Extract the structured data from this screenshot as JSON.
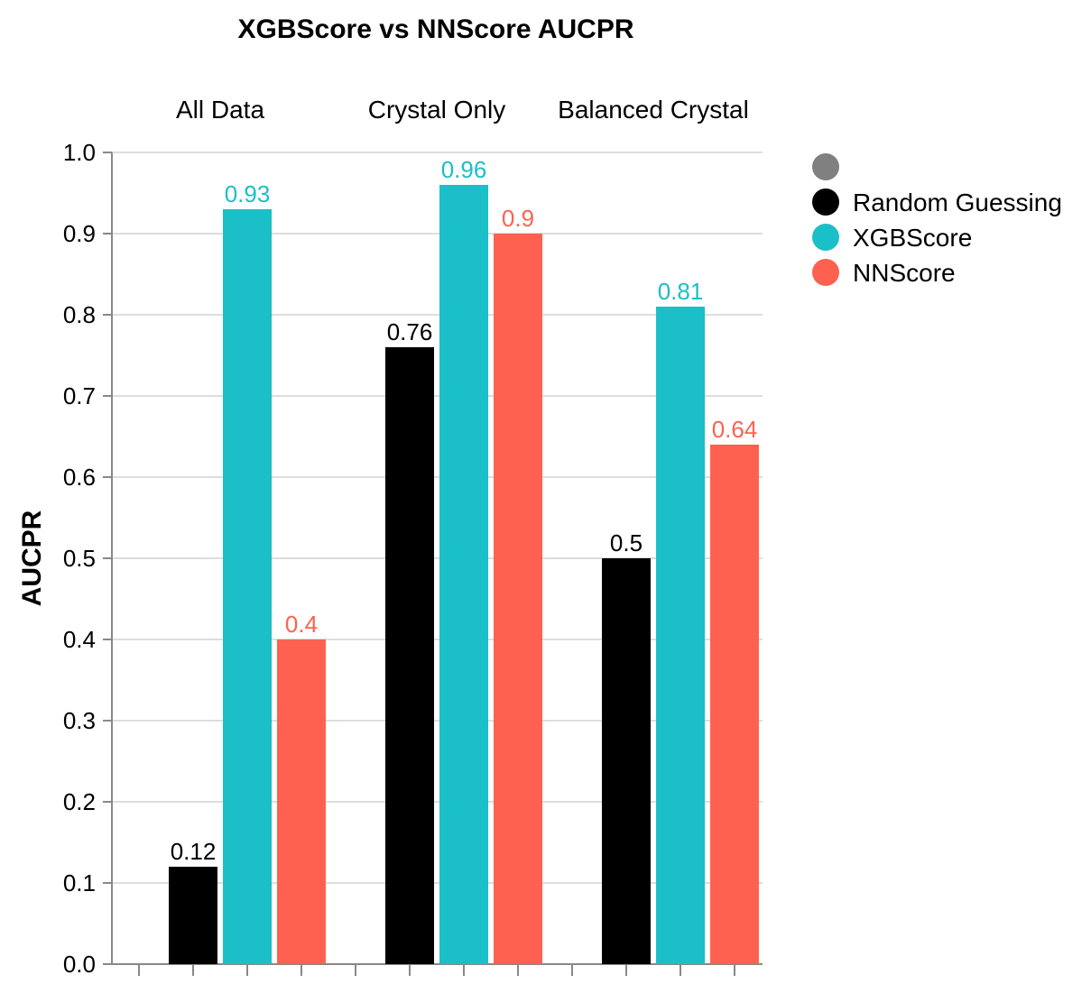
{
  "chart_data": {
    "type": "bar",
    "title": "XGBScore vs NNScore AUCPR",
    "ylabel": "AUCPR",
    "xlabel": "",
    "ylim": [
      0,
      1
    ],
    "yticks": [
      "0.0",
      "0.1",
      "0.2",
      "0.3",
      "0.4",
      "0.5",
      "0.6",
      "0.7",
      "0.8",
      "0.9",
      "1.0"
    ],
    "grid": true,
    "legend_position": "right",
    "categories": [
      "All Data",
      "Crystal Only",
      "Balanced Crystal"
    ],
    "series": [
      {
        "name": "Random Guessing",
        "color": "#000000",
        "values": [
          0.12,
          0.76,
          0.5
        ],
        "labels": [
          "0.12",
          "0.76",
          "0.5"
        ]
      },
      {
        "name": "XGBScore",
        "color": "#1bbfc7",
        "values": [
          0.93,
          0.96,
          0.81
        ],
        "labels": [
          "0.93",
          "0.96",
          "0.81"
        ]
      },
      {
        "name": "NNScore",
        "color": "#ff6150",
        "values": [
          0.4,
          0.9,
          0.64
        ],
        "labels": [
          "0.4",
          "0.9",
          "0.64"
        ]
      }
    ],
    "legend_extra_marker_color": "#808080"
  }
}
